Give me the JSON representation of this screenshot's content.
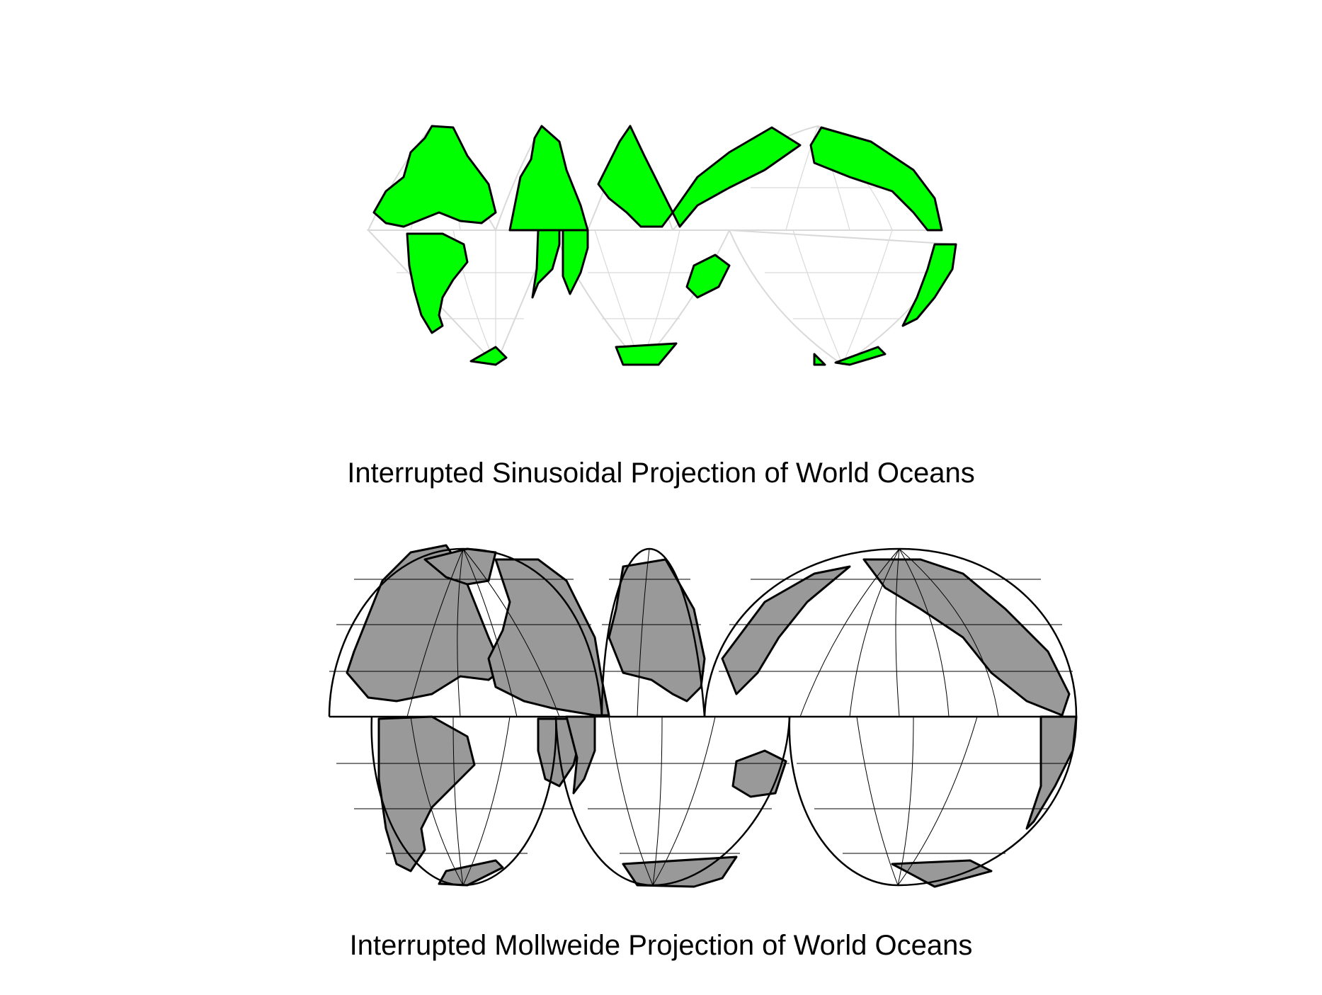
{
  "maps": [
    {
      "id": "sinusoidal",
      "caption": "Interrupted Sinusoidal Projection of World Oceans",
      "land_color": "#00ff00",
      "graticule_color": "#d9d9d9",
      "outline_color": "#d9d9d9"
    },
    {
      "id": "mollweide",
      "caption": "Interrupted Mollweide Projection of World Oceans",
      "land_color": "#999999",
      "graticule_color": "#000000",
      "outline_color": "#000000"
    }
  ]
}
